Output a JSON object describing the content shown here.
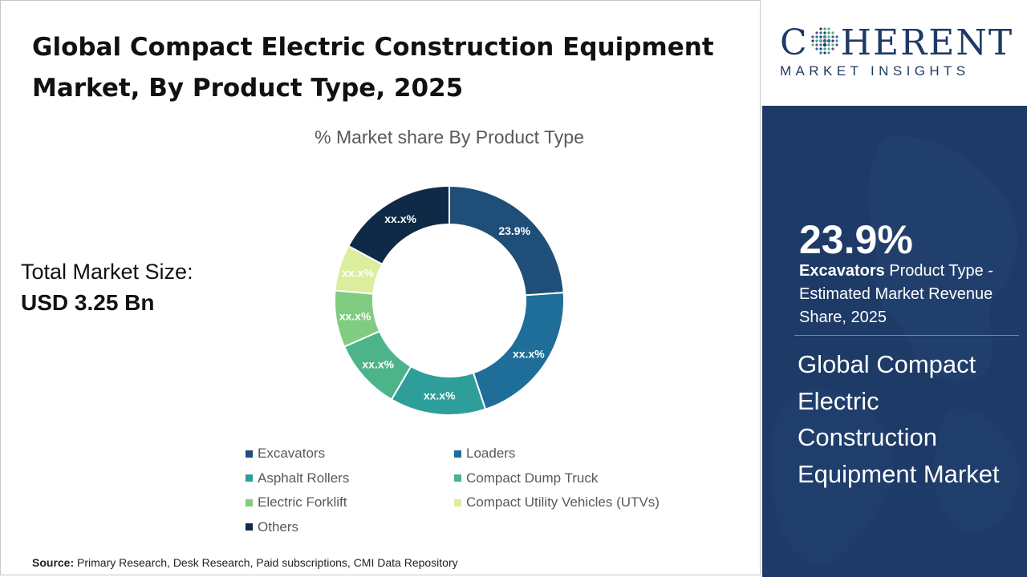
{
  "header": {
    "title": "Global Compact Electric Construction Equipment Market, By Product Type, 2025"
  },
  "total_market": {
    "label": "Total Market Size:",
    "value": "USD 3.25 Bn"
  },
  "source": {
    "label": "Source:",
    "text": " Primary Research, Desk Research, Paid subscriptions, CMI Data Repository"
  },
  "logo": {
    "word_before": "C",
    "word_after": "HERENT",
    "sub": "MARKET INSIGHTS"
  },
  "side_panel": {
    "stat": "23.9%",
    "stat_bold": "Excavators",
    "stat_rest": " Product Type - Estimated Market Revenue Share, 2025",
    "market_name": "Global Compact Electric Construction Equipment Market"
  },
  "chart_data": {
    "type": "pie",
    "donut": true,
    "title": "% Market share By Product Type",
    "legend_position": "bottom",
    "slices": [
      {
        "name": "Excavators",
        "value": 23.9,
        "label": "23.9%",
        "color": "#1f4e79"
      },
      {
        "name": "Loaders",
        "value": 21.0,
        "label": "xx.x%",
        "color": "#1f6e99"
      },
      {
        "name": "Asphalt Rollers",
        "value": 13.5,
        "label": "xx.x%",
        "color": "#2e9e9a"
      },
      {
        "name": "Compact Dump Truck",
        "value": 10.0,
        "label": "xx.x%",
        "color": "#4db48a"
      },
      {
        "name": "Electric Forklift",
        "value": 8.0,
        "label": "xx.x%",
        "color": "#80cc80"
      },
      {
        "name": "Compact Utility Vehicles (UTVs)",
        "value": 6.5,
        "label": "xx.x%",
        "color": "#dbee9e"
      },
      {
        "name": "Others",
        "value": 17.1,
        "label": "xx.x%",
        "color": "#0e2a47"
      }
    ]
  }
}
